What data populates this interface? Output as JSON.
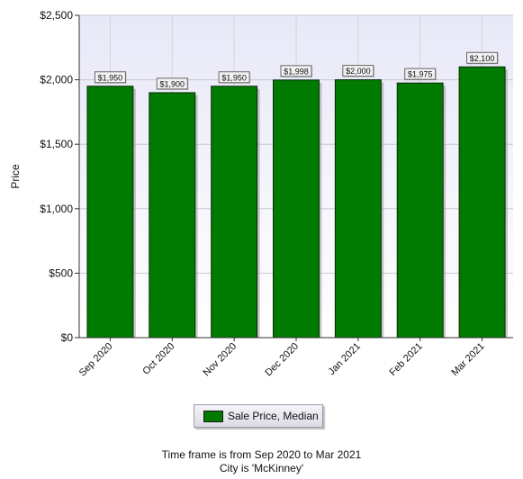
{
  "chart_data": {
    "type": "bar",
    "title": "",
    "xlabel": "",
    "ylabel": "Price",
    "categories": [
      "Sep 2020",
      "Oct 2020",
      "Nov 2020",
      "Dec 2020",
      "Jan 2021",
      "Feb 2021",
      "Mar 2021"
    ],
    "series": [
      {
        "name": "Sale Price, Median",
        "values": [
          1950,
          1900,
          1950,
          1998,
          2000,
          1975,
          2100
        ],
        "data_labels": [
          "$1,950",
          "$1,900",
          "$1,950",
          "$1,998",
          "$2,000",
          "$1,975",
          "$2,100"
        ],
        "color": "#007a00"
      }
    ],
    "ylim": [
      0,
      2500
    ],
    "yticks": [
      0,
      500,
      1000,
      1500,
      2000,
      2500
    ],
    "ytick_labels": [
      "$0",
      "$500",
      "$1,000",
      "$1,500",
      "$2,000",
      "$2,500"
    ],
    "grid": true,
    "legend_position": "bottom-center"
  },
  "footer": {
    "line1": "Time frame is from Sep 2020 to Mar 2021",
    "line2": "City is 'McKinney'"
  }
}
